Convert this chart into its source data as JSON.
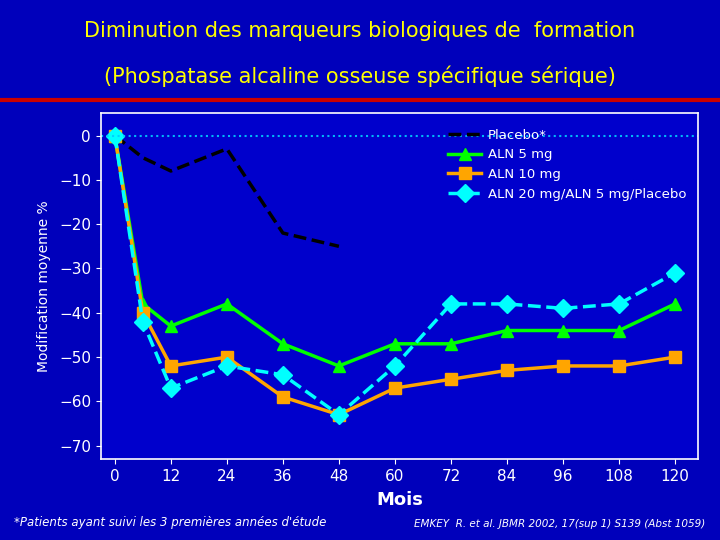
{
  "title_line1": "Diminution des marqueurs biologiques de  formation",
  "title_line2": "(Phospatase alcaline osseuse spécifique sérique)",
  "xlabel": "Mois",
  "ylabel": "Modification moyenne %",
  "footnote_left": "*Patients ayant suivi les 3 premières années d'étude",
  "footnote_right": "EMKEY  R. et al. JBMR 2002, 17(sup 1) S139 (Abst 1059)",
  "background_color": "#0000BB",
  "plot_bg_color": "#0000CC",
  "title_color": "#FFFF00",
  "axis_color": "#FFFFFF",
  "grid_color": "#00CCFF",
  "separator_color": "#CC0000",
  "x_ticks": [
    0,
    12,
    24,
    36,
    48,
    60,
    72,
    84,
    96,
    108,
    120
  ],
  "y_ticks": [
    0,
    -10,
    -20,
    -30,
    -40,
    -50,
    -60,
    -70
  ],
  "ylim": [
    -73,
    5
  ],
  "xlim": [
    -3,
    125
  ],
  "series": {
    "placebo": {
      "label": "Placebo*",
      "color": "#000000",
      "linestyle": "--",
      "marker": "None",
      "markersize": 0,
      "linewidth": 2.5,
      "x": [
        0,
        6,
        12,
        24,
        36,
        48
      ],
      "y": [
        0,
        -5,
        -8,
        -3,
        -22,
        -25
      ]
    },
    "aln5": {
      "label": "ALN 5 mg",
      "color": "#00FF00",
      "linestyle": "-",
      "marker": "^",
      "markersize": 9,
      "linewidth": 2.5,
      "x": [
        0,
        6,
        12,
        24,
        36,
        48,
        60,
        72,
        84,
        96,
        108,
        120
      ],
      "y": [
        0,
        -38,
        -43,
        -38,
        -47,
        -52,
        -47,
        -47,
        -44,
        -44,
        -44,
        -38
      ]
    },
    "aln10": {
      "label": "ALN 10 mg",
      "color": "#FFA500",
      "linestyle": "-",
      "marker": "s",
      "markersize": 9,
      "linewidth": 2.5,
      "x": [
        0,
        6,
        12,
        24,
        36,
        48,
        60,
        72,
        84,
        96,
        108,
        120
      ],
      "y": [
        0,
        -40,
        -52,
        -50,
        -59,
        -63,
        -57,
        -55,
        -53,
        -52,
        -52,
        -50
      ]
    },
    "aln20": {
      "label": "ALN 20 mg/ALN 5 mg/Placebo",
      "color": "#00FFFF",
      "linestyle": "--",
      "marker": "D",
      "markersize": 9,
      "linewidth": 2.5,
      "x": [
        0,
        6,
        12,
        24,
        36,
        48,
        60,
        72,
        84,
        96,
        108,
        120
      ],
      "y": [
        0,
        -42,
        -57,
        -52,
        -54,
        -63,
        -52,
        -38,
        -38,
        -39,
        -38,
        -31
      ]
    }
  }
}
